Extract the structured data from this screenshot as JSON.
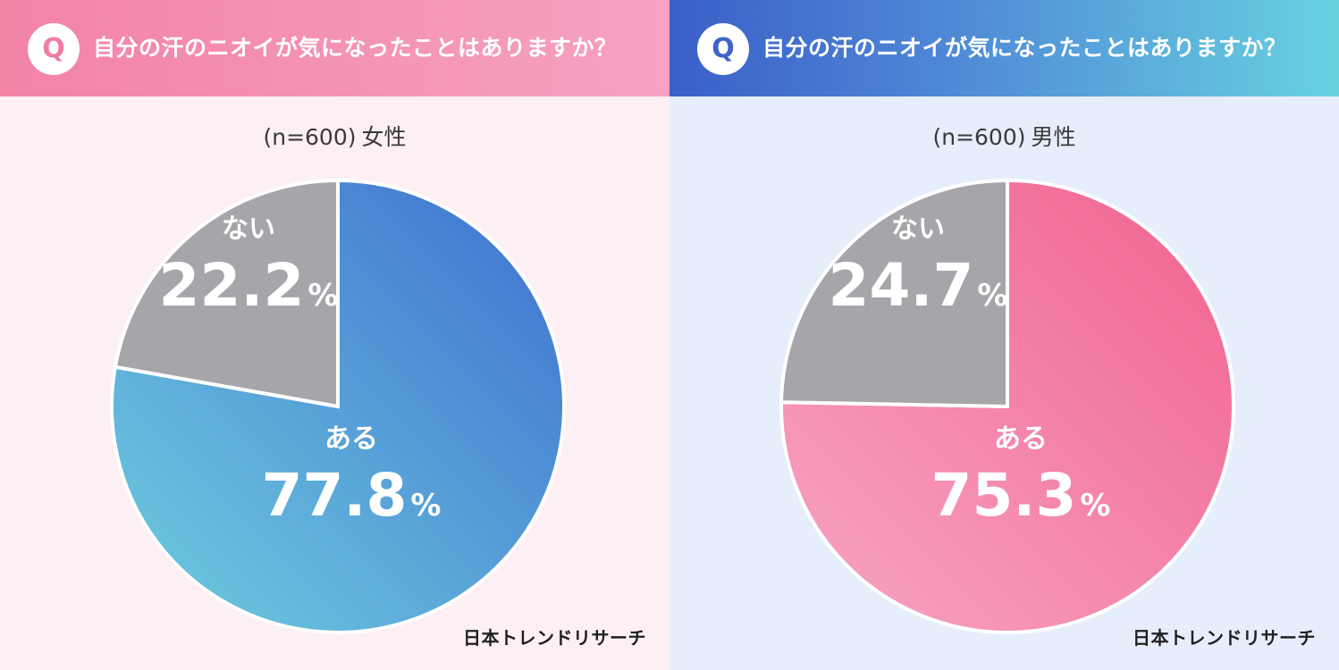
{
  "brand": "日本トレンドリサーチ",
  "question_badge": "Q",
  "chart_data": [
    {
      "type": "pie",
      "title": "自分の汗のニオイが気になったことはありますか？",
      "sample": "(n=600)",
      "group": "女性",
      "slices": [
        {
          "label": "ある",
          "value": 77.8,
          "display": "77.8",
          "unit": "%",
          "colors": [
            "#6fcfdf",
            "#3e6fd0"
          ]
        },
        {
          "label": "ない",
          "value": 22.2,
          "display": "22.2",
          "unit": "%",
          "colors": [
            "#a6a6aa",
            "#a6a6aa"
          ]
        }
      ]
    },
    {
      "type": "pie",
      "title": "自分の汗のニオイが気になったことはありますか？",
      "sample": "(n=600)",
      "group": "男性",
      "slices": [
        {
          "label": "ある",
          "value": 75.3,
          "display": "75.3",
          "unit": "%",
          "colors": [
            "#f8a6c5",
            "#f0628e"
          ]
        },
        {
          "label": "ない",
          "value": 24.7,
          "display": "24.7",
          "unit": "%",
          "colors": [
            "#a6a6aa",
            "#a6a6aa"
          ]
        }
      ]
    }
  ]
}
